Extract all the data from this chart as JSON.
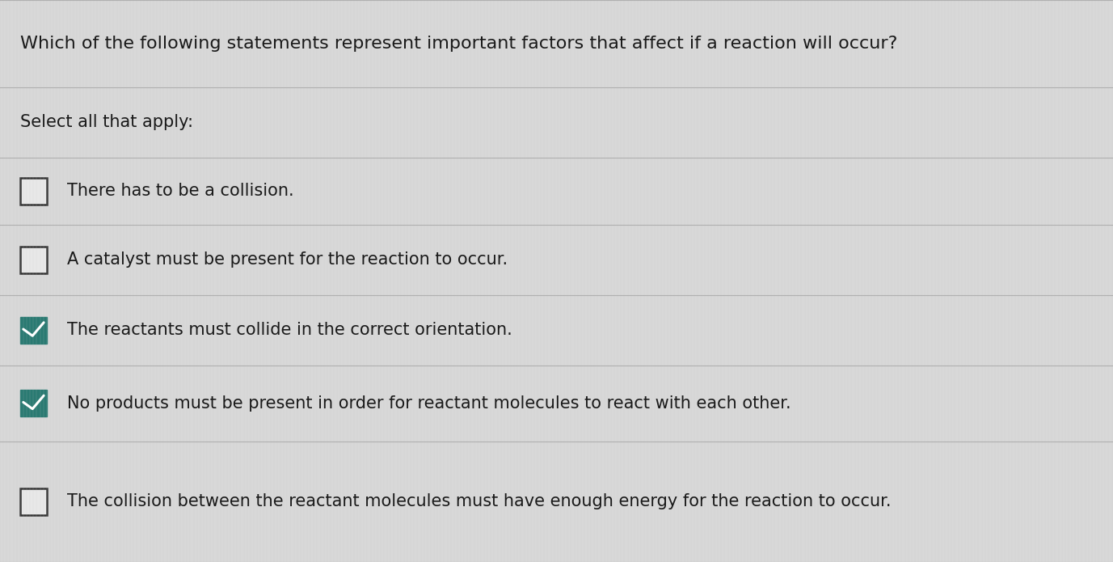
{
  "background_color": "#d8d8d8",
  "text_color": "#1a1a1a",
  "checked_color": "#2a7a72",
  "line_color": "#b0b0b0",
  "checkbox_empty_edge": "#333333",
  "checkbox_empty_face": "#e8e8e8",
  "question": "Which of the following statements represent important factors that affect if a reaction will occur?",
  "subtitle": "Select all that apply:",
  "options": [
    {
      "text": "There has to be a collision.",
      "checked": false
    },
    {
      "text": "A catalyst must be present for the reaction to occur.",
      "checked": false
    },
    {
      "text": "The reactants must collide in the correct orientation.",
      "checked": true
    },
    {
      "text": "No products must be present in order for reactant molecules to react with each other.",
      "checked": true
    },
    {
      "text": "The collision between the reactant molecules must have enough energy for the reaction to occur.",
      "checked": false
    }
  ],
  "question_fontsize": 16,
  "subtitle_fontsize": 15,
  "option_fontsize": 15,
  "figsize": [
    13.77,
    6.95
  ],
  "dpi": 100,
  "row_boundaries": [
    1.0,
    0.845,
    0.72,
    0.6,
    0.475,
    0.35,
    0.215,
    0.0
  ]
}
